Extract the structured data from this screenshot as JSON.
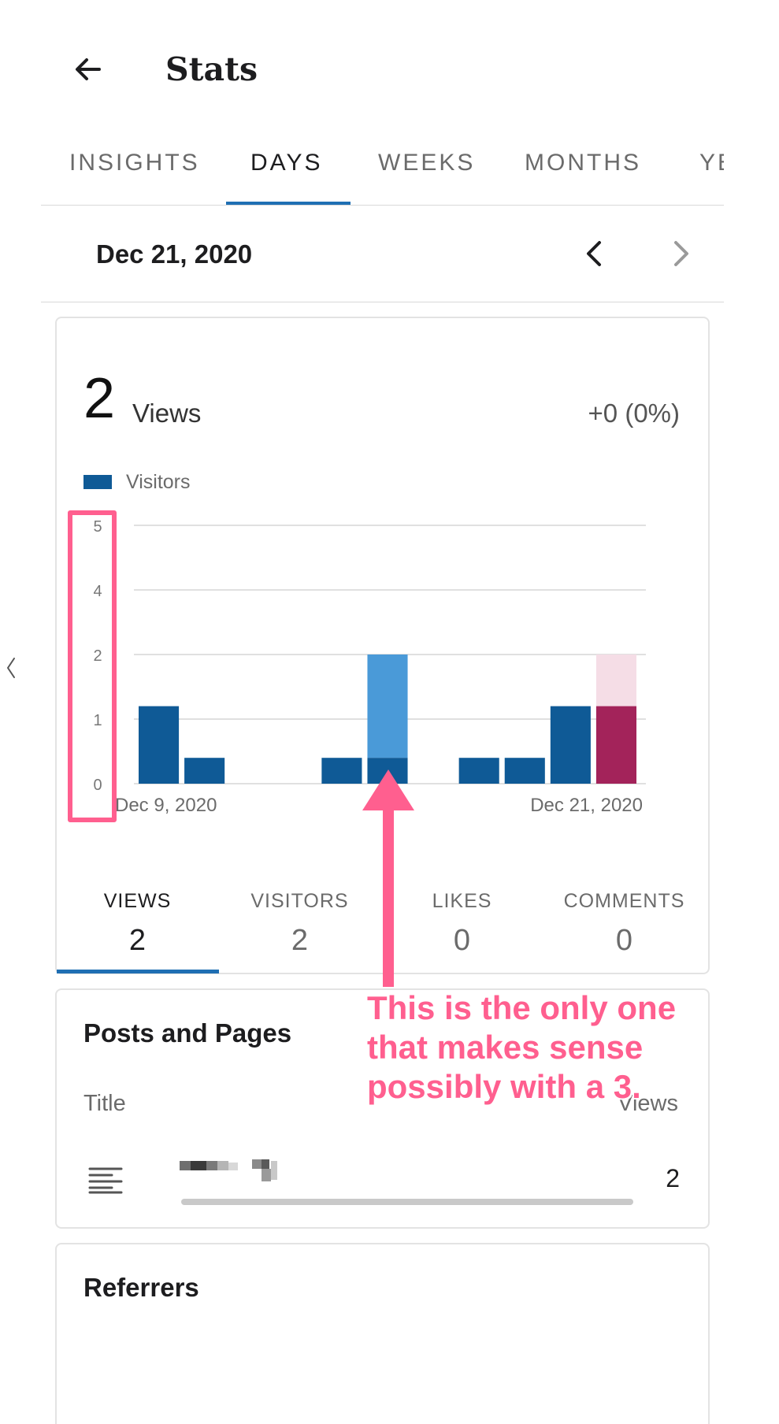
{
  "header": {
    "title": "Stats",
    "back_icon": "arrow-left-icon"
  },
  "tabs": [
    {
      "label": "INSIGHTS",
      "active": false
    },
    {
      "label": "DAYS",
      "active": true
    },
    {
      "label": "WEEKS",
      "active": false
    },
    {
      "label": "MONTHS",
      "active": false
    },
    {
      "label": "YE",
      "active": false
    }
  ],
  "date_nav": {
    "date": "Dec 21, 2020",
    "prev_icon": "chevron-left-icon",
    "next_icon": "chevron-right-icon"
  },
  "summary": {
    "count": "2",
    "unit": "Views",
    "change": "+0 (0%)"
  },
  "legend": {
    "label": "Visitors",
    "color": "#0f5a96"
  },
  "chart_data": {
    "type": "bar",
    "y_ticks": [
      "5",
      "4",
      "2",
      "1",
      "0"
    ],
    "x_labels": [
      "Dec 9, 2020",
      "Dec 21, 2020"
    ],
    "bars": [
      {
        "visitors": 1.5,
        "views": 1.5
      },
      {
        "visitors": 0.5,
        "views": 0.5
      },
      {
        "visitors": 0,
        "views": 0
      },
      {
        "visitors": 0,
        "views": 0
      },
      {
        "visitors": 0.5,
        "views": 0.5
      },
      {
        "visitors": 0.5,
        "views": 2.5,
        "highlight": true
      },
      {
        "visitors": 0,
        "views": 0
      },
      {
        "visitors": 0.5,
        "views": 0.5
      },
      {
        "visitors": 0.5,
        "views": 0.5
      },
      {
        "visitors": 1.5,
        "views": 1.5
      },
      {
        "visitors": 1.5,
        "views": 2.5,
        "selected": true
      }
    ],
    "colors": {
      "visitors": "#0f5a96",
      "views": "#0f5a96",
      "views_overlay": "#4a9ad8",
      "selected_visitors": "#a3235a",
      "selected_views": "#f5dde6"
    }
  },
  "metrics": [
    {
      "label": "VIEWS",
      "value": "2",
      "active": true
    },
    {
      "label": "VISITORS",
      "value": "2",
      "active": false
    },
    {
      "label": "LIKES",
      "value": "0",
      "active": false
    },
    {
      "label": "COMMENTS",
      "value": "0",
      "active": false
    }
  ],
  "posts": {
    "title": "Posts and Pages",
    "col_title": "Title",
    "col_views": "Views",
    "rows": [
      {
        "icon": "text-lines-icon",
        "value": "2",
        "bar_fraction": 1.0
      }
    ]
  },
  "referrers": {
    "title": "Referrers"
  },
  "annotation": {
    "text": "This is the only one that makes sense possibly with a 3.",
    "color": "#ff5f8f"
  }
}
